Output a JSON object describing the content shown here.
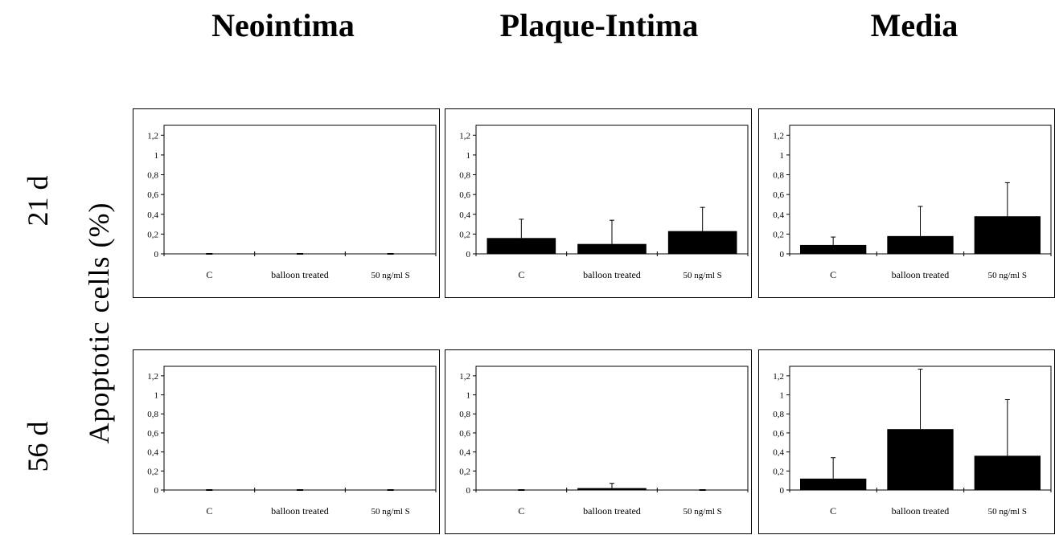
{
  "column_titles": [
    "Neointima",
    "Plaque-Intima",
    "Media"
  ],
  "row_labels": [
    "21 d",
    "56 d"
  ],
  "y_axis_label": "Apoptotic  cells (%)",
  "chart_data": [
    {
      "type": "bar",
      "categories": [
        "C",
        "balloon treated",
        "50 ng/ml S"
      ],
      "values": [
        0,
        0,
        0
      ],
      "errors": [
        0,
        0,
        0
      ],
      "yticks": [
        "0",
        "0,2",
        "0,4",
        "0,6",
        "0,8",
        "1",
        "1,2"
      ],
      "ylim": [
        0,
        1.3
      ],
      "title": "",
      "xlabel": "",
      "ylabel": ""
    },
    {
      "type": "bar",
      "categories": [
        "C",
        "balloon treated",
        "50 ng/ml S"
      ],
      "values": [
        0.16,
        0.1,
        0.23
      ],
      "errors": [
        0.19,
        0.24,
        0.24
      ],
      "yticks": [
        "0",
        "0,2",
        "0,4",
        "0,6",
        "0,8",
        "1",
        "1,2"
      ],
      "ylim": [
        0,
        1.3
      ],
      "title": "",
      "xlabel": "",
      "ylabel": ""
    },
    {
      "type": "bar",
      "categories": [
        "C",
        "balloon treated",
        "50 ng/ml S"
      ],
      "values": [
        0.09,
        0.18,
        0.38
      ],
      "errors": [
        0.08,
        0.3,
        0.34
      ],
      "yticks": [
        "0",
        "0,2",
        "0,4",
        "0,6",
        "0,8",
        "1",
        "1,2"
      ],
      "ylim": [
        0,
        1.3
      ],
      "title": "",
      "xlabel": "",
      "ylabel": ""
    },
    {
      "type": "bar",
      "categories": [
        "C",
        "balloon treated",
        "50 ng/ml S"
      ],
      "values": [
        0,
        0,
        0
      ],
      "errors": [
        0,
        0,
        0
      ],
      "yticks": [
        "0",
        "0,2",
        "0,4",
        "0,6",
        "0,8",
        "1",
        "1,2"
      ],
      "ylim": [
        0,
        1.3
      ],
      "title": "",
      "xlabel": "",
      "ylabel": ""
    },
    {
      "type": "bar",
      "categories": [
        "C",
        "balloon treated",
        "50 ng/ml S"
      ],
      "values": [
        0,
        0.02,
        0
      ],
      "errors": [
        0,
        0.05,
        0
      ],
      "yticks": [
        "0",
        "0,2",
        "0,4",
        "0,6",
        "0,8",
        "1",
        "1,2"
      ],
      "ylim": [
        0,
        1.3
      ],
      "title": "",
      "xlabel": "",
      "ylabel": ""
    },
    {
      "type": "bar",
      "categories": [
        "C",
        "balloon treated",
        "50 ng/ml S"
      ],
      "values": [
        0.12,
        0.64,
        0.36
      ],
      "errors": [
        0.22,
        0.63,
        0.59
      ],
      "yticks": [
        "0",
        "0,2",
        "0,4",
        "0,6",
        "0,8",
        "1",
        "1,2"
      ],
      "ylim": [
        0,
        1.3
      ],
      "title": "",
      "xlabel": "",
      "ylabel": ""
    }
  ]
}
